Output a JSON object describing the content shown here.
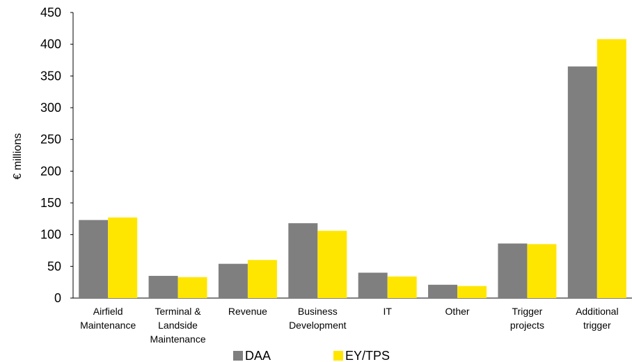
{
  "chart_data": {
    "type": "bar",
    "title": "",
    "xlabel": "",
    "ylabel": "€ millions",
    "ylim": [
      0,
      450
    ],
    "yticks": [
      0,
      50,
      100,
      150,
      200,
      250,
      300,
      350,
      400,
      450
    ],
    "grid": false,
    "legend": "bottom",
    "categories": [
      [
        "Airfield",
        "Maintenance"
      ],
      [
        "Terminal &",
        "Landside",
        "Maintenance"
      ],
      [
        "Revenue"
      ],
      [
        "Business",
        "Development"
      ],
      [
        "IT"
      ],
      [
        "Other"
      ],
      [
        "Trigger",
        "projects"
      ],
      [
        "Additional",
        "trigger"
      ]
    ],
    "series": [
      {
        "name": "DAA",
        "color": "#7f7f80",
        "values": [
          123,
          35,
          54,
          118,
          40,
          21,
          86,
          365
        ]
      },
      {
        "name": "EY/TPS",
        "color": "#ffe600",
        "values": [
          127,
          33,
          60,
          106,
          34,
          19,
          85,
          408
        ]
      }
    ]
  }
}
